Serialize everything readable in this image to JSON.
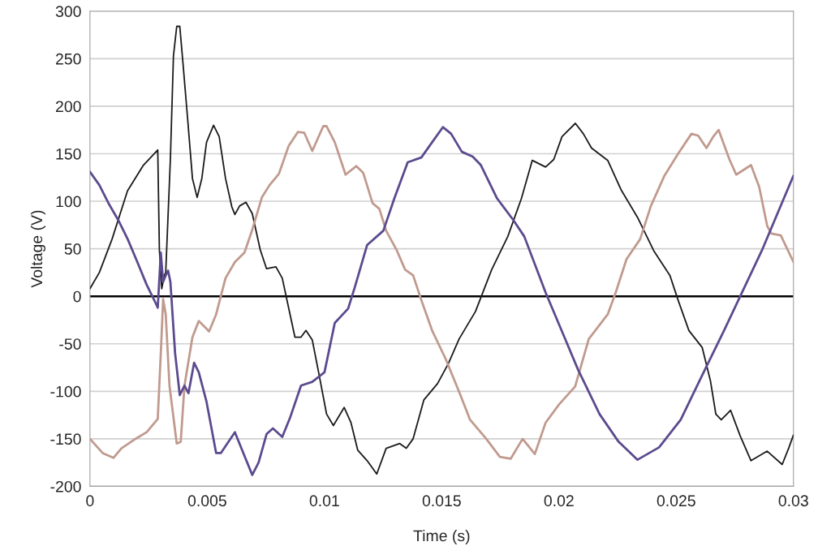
{
  "chart_data": {
    "type": "line",
    "xlabel": "Time (s)",
    "ylabel": "Voltage (V)",
    "xlim": [
      0,
      0.03
    ],
    "xticks": [
      0,
      0.005,
      0.01,
      0.015,
      0.02,
      0.025,
      0.03
    ],
    "ylim": [
      -200,
      300
    ],
    "yticks": [
      -200,
      -150,
      -100,
      -50,
      0,
      50,
      100,
      150,
      200,
      250,
      300
    ],
    "grid": "y",
    "legend": false,
    "marker": "none",
    "line_style": "solid",
    "ref_lines": [
      {
        "axis": "y",
        "value": 0,
        "color": "#000000"
      }
    ],
    "series": [
      {
        "color": "#1a1a1a",
        "x": [
          0,
          0.0004,
          0.00094,
          0.0016,
          0.00228,
          0.00289,
          0.00296,
          0.00306,
          0.00317,
          0.00323,
          0.00343,
          0.00356,
          0.0037,
          0.00383,
          0.00396,
          0.00417,
          0.00437,
          0.00457,
          0.00477,
          0.00497,
          0.00527,
          0.00551,
          0.00578,
          0.00605,
          0.00618,
          0.00638,
          0.00665,
          0.00692,
          0.00726,
          0.00753,
          0.00793,
          0.0082,
          0.00847,
          0.00874,
          0.009,
          0.00921,
          0.00948,
          0.00975,
          0.01009,
          0.01038,
          0.01084,
          0.01113,
          0.01142,
          0.01182,
          0.01223,
          0.01263,
          0.01321,
          0.01349,
          0.01378,
          0.01424,
          0.01482,
          0.01528,
          0.01574,
          0.01644,
          0.01713,
          0.01782,
          0.0184,
          0.01886,
          0.01943,
          0.01978,
          0.02013,
          0.0207,
          0.02104,
          0.02139,
          0.02208,
          0.02265,
          0.02335,
          0.02404,
          0.02473,
          0.02508,
          0.02554,
          0.02611,
          0.02646,
          0.02669,
          0.02692,
          0.02732,
          0.02773,
          0.02819,
          0.02888,
          0.02952,
          0.02981,
          0.03
        ],
        "values": [
          8,
          25,
          60,
          111,
          138,
          154,
          49,
          8,
          22,
          25,
          145,
          253,
          284,
          284,
          247,
          185,
          124,
          104,
          124,
          162,
          180,
          168,
          124,
          94,
          86,
          95,
          99,
          87,
          49,
          29,
          31,
          19,
          -12,
          -43,
          -43,
          -36,
          -46,
          -80,
          -124,
          -136,
          -117,
          -133,
          -162,
          -173,
          -187,
          -160,
          -155,
          -160,
          -150,
          -109,
          -92,
          -71,
          -45,
          -16,
          28,
          63,
          103,
          143,
          136,
          144,
          168,
          182,
          171,
          156,
          143,
          112,
          83,
          48,
          22,
          -4,
          -36,
          -54,
          -89,
          -124,
          -130,
          -120,
          -147,
          -173,
          -163,
          -177,
          -159,
          -146
        ]
      },
      {
        "color": "#c09a8e",
        "x": [
          0,
          0.00054,
          0.001,
          0.00134,
          0.00188,
          0.00242,
          0.00289,
          0.00302,
          0.00312,
          0.00323,
          0.00339,
          0.0037,
          0.00387,
          0.00403,
          0.00437,
          0.00464,
          0.00508,
          0.00538,
          0.00578,
          0.00618,
          0.00659,
          0.00692,
          0.00733,
          0.00766,
          0.00806,
          0.00847,
          0.00887,
          0.00914,
          0.00948,
          0.00995,
          0.01009,
          0.01044,
          0.0109,
          0.01136,
          0.01165,
          0.01205,
          0.01234,
          0.01263,
          0.01309,
          0.01344,
          0.01378,
          0.01413,
          0.01459,
          0.01517,
          0.01575,
          0.01621,
          0.0169,
          0.01748,
          0.01794,
          0.01845,
          0.01897,
          0.01943,
          0.02,
          0.02069,
          0.02127,
          0.02208,
          0.02242,
          0.02288,
          0.02346,
          0.02392,
          0.0245,
          0.02508,
          0.02565,
          0.02594,
          0.02629,
          0.02658,
          0.02681,
          0.02727,
          0.02756,
          0.02819,
          0.02854,
          0.02888,
          0.02906,
          0.02946,
          0.03
        ],
        "values": [
          -150,
          -165,
          -170,
          -160,
          -151,
          -143,
          -129,
          -60,
          -3,
          -19,
          -94,
          -155,
          -153,
          -94,
          -43,
          -26,
          -37,
          -19,
          19,
          36,
          46,
          70,
          104,
          117,
          129,
          158,
          173,
          172,
          153,
          179,
          179,
          162,
          128,
          137,
          130,
          98,
          92,
          69,
          48,
          28,
          22,
          -4,
          -36,
          -66,
          -101,
          -130,
          -150,
          -169,
          -171,
          -150,
          -166,
          -133,
          -114,
          -95,
          -45,
          -19,
          4,
          39,
          60,
          95,
          127,
          150,
          171,
          169,
          156,
          168,
          175,
          144,
          128,
          138,
          115,
          74,
          66,
          64,
          36
        ]
      },
      {
        "color": "#5b4a8e",
        "x": [
          0,
          0.0004,
          0.00081,
          0.00121,
          0.00161,
          0.00202,
          0.00242,
          0.00276,
          0.00289,
          0.00302,
          0.00312,
          0.00323,
          0.00333,
          0.00343,
          0.00363,
          0.00383,
          0.00403,
          0.0042,
          0.00444,
          0.00464,
          0.00497,
          0.00538,
          0.00558,
          0.00618,
          0.00659,
          0.00692,
          0.00719,
          0.00753,
          0.0078,
          0.0082,
          0.00853,
          0.009,
          0.00948,
          0.01,
          0.01044,
          0.01101,
          0.0113,
          0.01182,
          0.01251,
          0.01298,
          0.01355,
          0.01413,
          0.01459,
          0.01505,
          0.0154,
          0.01586,
          0.01632,
          0.01667,
          0.01736,
          0.01806,
          0.01852,
          0.01943,
          0.0203,
          0.02081,
          0.02173,
          0.02254,
          0.02335,
          0.02427,
          0.02519,
          0.02611,
          0.02704,
          0.02773,
          0.02865,
          0.03
        ],
        "values": [
          131,
          117,
          97,
          80,
          60,
          36,
          12,
          -5,
          -12,
          46,
          15,
          22,
          27,
          15,
          -60,
          -104,
          -94,
          -102,
          -70,
          -80,
          -111,
          -165,
          -165,
          -143,
          -168,
          -188,
          -175,
          -145,
          -139,
          -148,
          -128,
          -94,
          -90,
          -80,
          -28,
          -13,
          10,
          54,
          69,
          103,
          141,
          146,
          162,
          178,
          171,
          152,
          147,
          138,
          103,
          80,
          63,
          4,
          -47,
          -77,
          -124,
          -153,
          -172,
          -159,
          -130,
          -83,
          -36,
          0,
          48,
          127
        ]
      }
    ]
  }
}
